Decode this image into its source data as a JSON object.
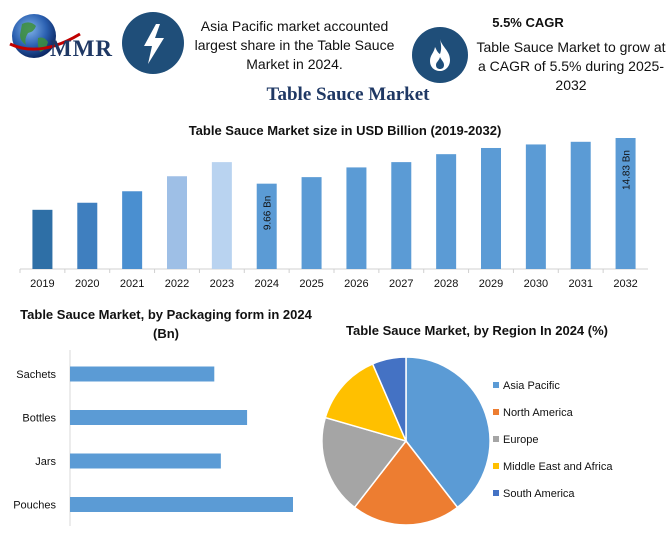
{
  "header": {
    "logo_text": "MMR",
    "blurb_left": "Asia Pacific market accounted largest share in the Table Sauce Market in 2024.",
    "cagr_heading": "5.5% CAGR",
    "cagr_text": "Table Sauce Market to grow at a CAGR of 5.5% during 2025-2032",
    "icons": [
      "lightning-bolt-icon",
      "flame-icon",
      "globe-icon"
    ],
    "colors": {
      "circle": "#1f4e79",
      "brand": "#1f3864"
    }
  },
  "main_title": "Table Sauce Market",
  "chart_data": [
    {
      "type": "bar",
      "title": "Table Sauce Market size in USD Billion (2019-2032)",
      "categories": [
        "2019",
        "2020",
        "2021",
        "2022",
        "2023",
        "2024",
        "2025",
        "2026",
        "2027",
        "2028",
        "2029",
        "2030",
        "2031",
        "2032"
      ],
      "values": [
        6.7,
        7.5,
        8.8,
        10.5,
        12.1,
        9.66,
        10.4,
        11.5,
        12.1,
        13.0,
        13.7,
        14.1,
        14.4,
        14.83
      ],
      "data_labels": [
        {
          "category": "2024",
          "text": "9.66 Bn"
        },
        {
          "category": "2032",
          "text": "14.83 Bn"
        }
      ],
      "colors": [
        "#2e6fa6",
        "#3f7fbf",
        "#4a8fd0",
        "#9ebfe6",
        "#b9d3f0",
        "#5b9bd5",
        "#5b9bd5",
        "#5b9bd5",
        "#5b9bd5",
        "#5b9bd5",
        "#5b9bd5",
        "#5b9bd5",
        "#5b9bd5",
        "#5b9bd5"
      ],
      "grid": false
    },
    {
      "type": "bar",
      "orientation": "horizontal",
      "title": "Table Sauce Market, by Packaging form in 2024 (Bn)",
      "categories": [
        "Sachets",
        "Bottles",
        "Jars",
        "Pouches"
      ],
      "values": [
        1.1,
        1.35,
        1.15,
        1.7
      ],
      "color": "#5b9bd5",
      "grid": false
    },
    {
      "type": "pie",
      "title": "Table Sauce Market, by Region In 2024 (%)",
      "categories": [
        "Asia Pacific",
        "North America",
        "Europe",
        "Middle East and Africa",
        "South America"
      ],
      "values": [
        39.5,
        21,
        19,
        14,
        6.5
      ],
      "colors": [
        "#5b9bd5",
        "#ed7d31",
        "#a5a5a5",
        "#ffc000",
        "#4472c4"
      ],
      "legend": "right"
    }
  ]
}
